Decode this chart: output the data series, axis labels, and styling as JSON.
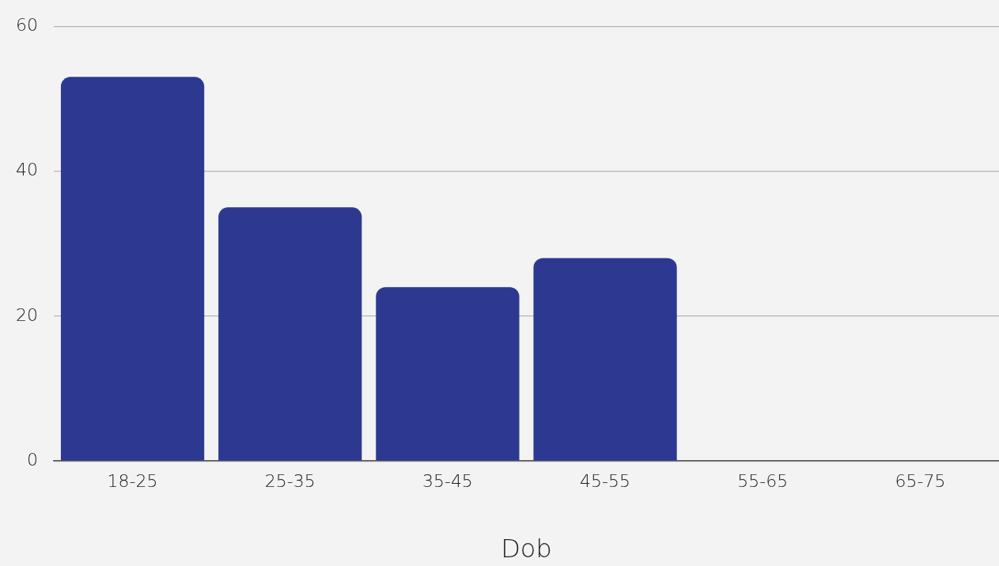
{
  "chart_data": {
    "type": "bar",
    "xlabel": "Dob",
    "categories": [
      "18-25",
      "25-35",
      "35-45",
      "45-55",
      "55-65",
      "65-75"
    ],
    "values": [
      53,
      35,
      24,
      28,
      0,
      0
    ],
    "color": "#2d3990",
    "ylim": [
      0,
      60
    ],
    "yticks": [
      0,
      20,
      40,
      60
    ],
    "grid": "y",
    "legend": false
  }
}
